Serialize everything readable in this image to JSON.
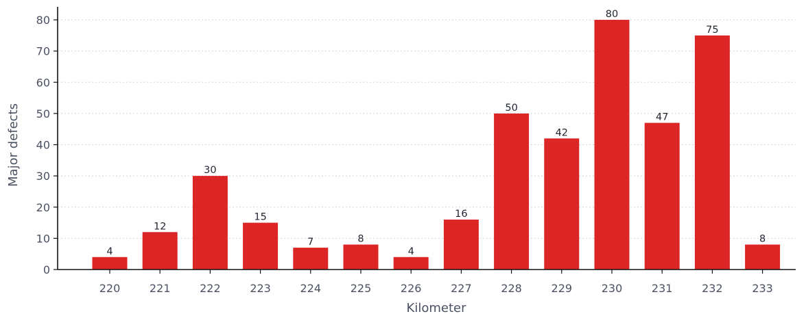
{
  "chart_data": {
    "type": "bar",
    "title": "",
    "xlabel": "Kilometer",
    "ylabel": "Major defects",
    "categories": [
      "220",
      "221",
      "222",
      "223",
      "224",
      "225",
      "226",
      "227",
      "228",
      "229",
      "230",
      "231",
      "232",
      "233"
    ],
    "values": [
      4,
      12,
      30,
      15,
      7,
      8,
      4,
      16,
      50,
      42,
      80,
      47,
      75,
      8
    ],
    "ylim": [
      0,
      80
    ],
    "yticks": [
      0,
      10,
      20,
      30,
      40,
      50,
      60,
      70,
      80
    ],
    "grid": "horizontal dotted",
    "legend": "none",
    "bar_color": "#dc2626",
    "data_labels": true
  }
}
